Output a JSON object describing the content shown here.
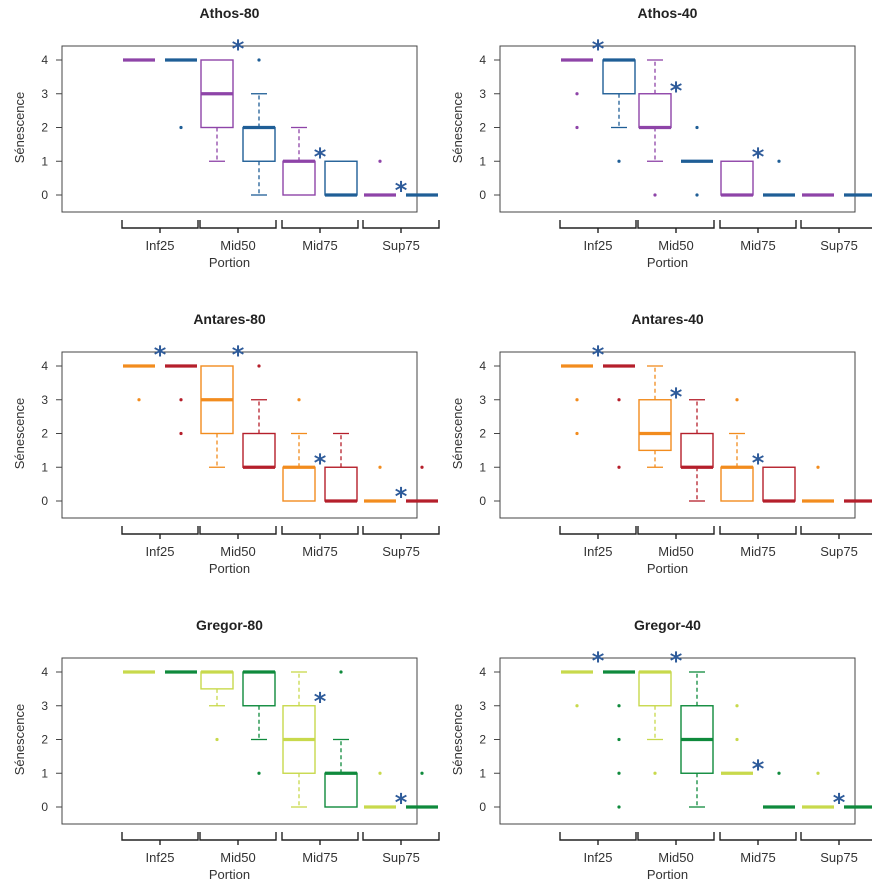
{
  "chart_data": [
    {
      "type": "boxplot",
      "title": "Athos-80",
      "xlabel": "Portion",
      "ylabel": "Sénescence",
      "categories": [
        "Inf25",
        "Mid50",
        "Mid75",
        "Sup75"
      ],
      "yticks": [
        0,
        1,
        2,
        3,
        4
      ],
      "ylim": [
        0,
        4
      ],
      "colors": [
        "#8e44a8",
        "#1f5e96"
      ],
      "boxes": [
        {
          "q1": 4,
          "median": 4,
          "q3": 4,
          "lo": 4,
          "hi": 4,
          "outliers": []
        },
        {
          "q1": 4,
          "median": 4,
          "q3": 4,
          "lo": 4,
          "hi": 4,
          "outliers": [
            2
          ]
        },
        {
          "q1": 2,
          "median": 3,
          "q3": 4,
          "lo": 1,
          "hi": 4,
          "outliers": []
        },
        {
          "q1": 1,
          "median": 2,
          "q3": 2,
          "lo": 0,
          "hi": 3,
          "outliers": [
            4
          ]
        },
        {
          "q1": 0,
          "median": 1,
          "q3": 1,
          "lo": 0,
          "hi": 2,
          "outliers": []
        },
        {
          "q1": 0,
          "median": 0,
          "q3": 1,
          "lo": 0,
          "hi": 1,
          "outliers": []
        },
        {
          "q1": 0,
          "median": 0,
          "q3": 0,
          "lo": 0,
          "hi": 0,
          "outliers": [
            1
          ]
        },
        {
          "q1": 0,
          "median": 0,
          "q3": 0,
          "lo": 0,
          "hi": 0,
          "outliers": []
        }
      ],
      "significance": [
        {
          "category": "Mid50",
          "y": 4.45,
          "text": "*"
        },
        {
          "category": "Mid75",
          "y": 1.25,
          "text": "*"
        },
        {
          "category": "Sup75",
          "y": 0.25,
          "text": "*"
        }
      ]
    },
    {
      "type": "boxplot",
      "title": "Athos-40",
      "xlabel": "Portion",
      "ylabel": "Sénescence",
      "categories": [
        "Inf25",
        "Mid50",
        "Mid75",
        "Sup75"
      ],
      "yticks": [
        0,
        1,
        2,
        3,
        4
      ],
      "ylim": [
        0,
        4
      ],
      "colors": [
        "#8e44a8",
        "#1f5e96"
      ],
      "boxes": [
        {
          "q1": 4,
          "median": 4,
          "q3": 4,
          "lo": 4,
          "hi": 4,
          "outliers": [
            2,
            3
          ]
        },
        {
          "q1": 3,
          "median": 4,
          "q3": 4,
          "lo": 2,
          "hi": 4,
          "outliers": [
            1
          ]
        },
        {
          "q1": 2,
          "median": 2,
          "q3": 3,
          "lo": 1,
          "hi": 4,
          "outliers": [
            0
          ]
        },
        {
          "q1": 1,
          "median": 1,
          "q3": 1,
          "lo": 1,
          "hi": 1,
          "outliers": [
            0,
            2
          ]
        },
        {
          "q1": 0,
          "median": 0,
          "q3": 1,
          "lo": 0,
          "hi": 1,
          "outliers": []
        },
        {
          "q1": 0,
          "median": 0,
          "q3": 0,
          "lo": 0,
          "hi": 0,
          "outliers": [
            1
          ]
        },
        {
          "q1": 0,
          "median": 0,
          "q3": 0,
          "lo": 0,
          "hi": 0,
          "outliers": []
        },
        {
          "q1": 0,
          "median": 0,
          "q3": 0,
          "lo": 0,
          "hi": 0,
          "outliers": []
        }
      ],
      "significance": [
        {
          "category": "Inf25",
          "y": 4.45,
          "text": "*"
        },
        {
          "category": "Mid50",
          "y": 3.2,
          "text": "*"
        },
        {
          "category": "Mid75",
          "y": 1.25,
          "text": "*"
        }
      ]
    },
    {
      "type": "boxplot",
      "title": "Antares-80",
      "xlabel": "Portion",
      "ylabel": "Sénescence",
      "categories": [
        "Inf25",
        "Mid50",
        "Mid75",
        "Sup75"
      ],
      "yticks": [
        0,
        1,
        2,
        3,
        4
      ],
      "ylim": [
        0,
        4
      ],
      "colors": [
        "#f28c1e",
        "#b51f2b"
      ],
      "boxes": [
        {
          "q1": 4,
          "median": 4,
          "q3": 4,
          "lo": 4,
          "hi": 4,
          "outliers": [
            3
          ]
        },
        {
          "q1": 4,
          "median": 4,
          "q3": 4,
          "lo": 4,
          "hi": 4,
          "outliers": [
            2,
            3
          ]
        },
        {
          "q1": 2,
          "median": 3,
          "q3": 4,
          "lo": 1,
          "hi": 4,
          "outliers": []
        },
        {
          "q1": 1,
          "median": 1,
          "q3": 2,
          "lo": 1,
          "hi": 3,
          "outliers": [
            4
          ]
        },
        {
          "q1": 0,
          "median": 1,
          "q3": 1,
          "lo": 0,
          "hi": 2,
          "outliers": [
            3
          ]
        },
        {
          "q1": 0,
          "median": 0,
          "q3": 1,
          "lo": 0,
          "hi": 2,
          "outliers": []
        },
        {
          "q1": 0,
          "median": 0,
          "q3": 0,
          "lo": 0,
          "hi": 0,
          "outliers": [
            1
          ]
        },
        {
          "q1": 0,
          "median": 0,
          "q3": 0,
          "lo": 0,
          "hi": 0,
          "outliers": [
            1
          ]
        }
      ],
      "significance": [
        {
          "category": "Inf25",
          "y": 4.45,
          "text": "*"
        },
        {
          "category": "Mid50",
          "y": 4.45,
          "text": "*"
        },
        {
          "category": "Mid75",
          "y": 1.25,
          "text": "*"
        },
        {
          "category": "Sup75",
          "y": 0.25,
          "text": "*"
        }
      ]
    },
    {
      "type": "boxplot",
      "title": "Antares-40",
      "xlabel": "Portion",
      "ylabel": "Sénescence",
      "categories": [
        "Inf25",
        "Mid50",
        "Mid75",
        "Sup75"
      ],
      "yticks": [
        0,
        1,
        2,
        3,
        4
      ],
      "ylim": [
        0,
        4
      ],
      "colors": [
        "#f28c1e",
        "#b51f2b"
      ],
      "boxes": [
        {
          "q1": 4,
          "median": 4,
          "q3": 4,
          "lo": 4,
          "hi": 4,
          "outliers": [
            2,
            3
          ]
        },
        {
          "q1": 4,
          "median": 4,
          "q3": 4,
          "lo": 4,
          "hi": 4,
          "outliers": [
            1,
            3
          ]
        },
        {
          "q1": 1.5,
          "median": 2,
          "q3": 3,
          "lo": 1,
          "hi": 4,
          "outliers": []
        },
        {
          "q1": 1,
          "median": 1,
          "q3": 2,
          "lo": 0,
          "hi": 3,
          "outliers": []
        },
        {
          "q1": 0,
          "median": 1,
          "q3": 1,
          "lo": 0,
          "hi": 2,
          "outliers": [
            3
          ]
        },
        {
          "q1": 0,
          "median": 0,
          "q3": 1,
          "lo": 0,
          "hi": 1,
          "outliers": []
        },
        {
          "q1": 0,
          "median": 0,
          "q3": 0,
          "lo": 0,
          "hi": 0,
          "outliers": [
            1
          ]
        },
        {
          "q1": 0,
          "median": 0,
          "q3": 0,
          "lo": 0,
          "hi": 0,
          "outliers": []
        }
      ],
      "significance": [
        {
          "category": "Inf25",
          "y": 4.45,
          "text": "*"
        },
        {
          "category": "Mid50",
          "y": 3.2,
          "text": "*"
        },
        {
          "category": "Mid75",
          "y": 1.25,
          "text": "*"
        }
      ]
    },
    {
      "type": "boxplot",
      "title": "Gregor-80",
      "xlabel": "Portion",
      "ylabel": "Sénescence",
      "categories": [
        "Inf25",
        "Mid50",
        "Mid75",
        "Sup75"
      ],
      "yticks": [
        0,
        1,
        2,
        3,
        4
      ],
      "ylim": [
        0,
        4
      ],
      "colors": [
        "#c8d94c",
        "#0f8a3c"
      ],
      "boxes": [
        {
          "q1": 4,
          "median": 4,
          "q3": 4,
          "lo": 4,
          "hi": 4,
          "outliers": []
        },
        {
          "q1": 4,
          "median": 4,
          "q3": 4,
          "lo": 4,
          "hi": 4,
          "outliers": []
        },
        {
          "q1": 3.5,
          "median": 4,
          "q3": 4,
          "lo": 3,
          "hi": 4,
          "outliers": [
            2
          ]
        },
        {
          "q1": 3,
          "median": 4,
          "q3": 4,
          "lo": 2,
          "hi": 4,
          "outliers": [
            1
          ]
        },
        {
          "q1": 1,
          "median": 2,
          "q3": 3,
          "lo": 0,
          "hi": 4,
          "outliers": []
        },
        {
          "q1": 0,
          "median": 1,
          "q3": 1,
          "lo": 0,
          "hi": 2,
          "outliers": [
            4
          ]
        },
        {
          "q1": 0,
          "median": 0,
          "q3": 0,
          "lo": 0,
          "hi": 0,
          "outliers": [
            1
          ]
        },
        {
          "q1": 0,
          "median": 0,
          "q3": 0,
          "lo": 0,
          "hi": 0,
          "outliers": [
            1
          ]
        }
      ],
      "significance": [
        {
          "category": "Mid75",
          "y": 3.25,
          "text": "*"
        },
        {
          "category": "Sup75",
          "y": 0.25,
          "text": "*"
        }
      ]
    },
    {
      "type": "boxplot",
      "title": "Gregor-40",
      "xlabel": "Portion",
      "ylabel": "Sénescence",
      "categories": [
        "Inf25",
        "Mid50",
        "Mid75",
        "Sup75"
      ],
      "yticks": [
        0,
        1,
        2,
        3,
        4
      ],
      "ylim": [
        0,
        4
      ],
      "colors": [
        "#c8d94c",
        "#0f8a3c"
      ],
      "boxes": [
        {
          "q1": 4,
          "median": 4,
          "q3": 4,
          "lo": 4,
          "hi": 4,
          "outliers": [
            3
          ]
        },
        {
          "q1": 4,
          "median": 4,
          "q3": 4,
          "lo": 4,
          "hi": 4,
          "outliers": [
            0,
            1,
            2,
            3
          ]
        },
        {
          "q1": 3,
          "median": 4,
          "q3": 4,
          "lo": 2,
          "hi": 4,
          "outliers": [
            1
          ]
        },
        {
          "q1": 1,
          "median": 2,
          "q3": 3,
          "lo": 0,
          "hi": 4,
          "outliers": []
        },
        {
          "q1": 1,
          "median": 1,
          "q3": 1,
          "lo": 1,
          "hi": 1,
          "outliers": [
            2,
            3
          ]
        },
        {
          "q1": 0,
          "median": 0,
          "q3": 0,
          "lo": 0,
          "hi": 0,
          "outliers": [
            1
          ]
        },
        {
          "q1": 0,
          "median": 0,
          "q3": 0,
          "lo": 0,
          "hi": 0,
          "outliers": [
            1
          ]
        },
        {
          "q1": 0,
          "median": 0,
          "q3": 0,
          "lo": 0,
          "hi": 0,
          "outliers": []
        }
      ],
      "significance": [
        {
          "category": "Inf25",
          "y": 4.45,
          "text": "*"
        },
        {
          "category": "Mid50",
          "y": 4.45,
          "text": "*"
        },
        {
          "category": "Mid75",
          "y": 1.25,
          "text": "*"
        },
        {
          "category": "Sup75",
          "y": 0.25,
          "text": "*"
        }
      ]
    }
  ]
}
